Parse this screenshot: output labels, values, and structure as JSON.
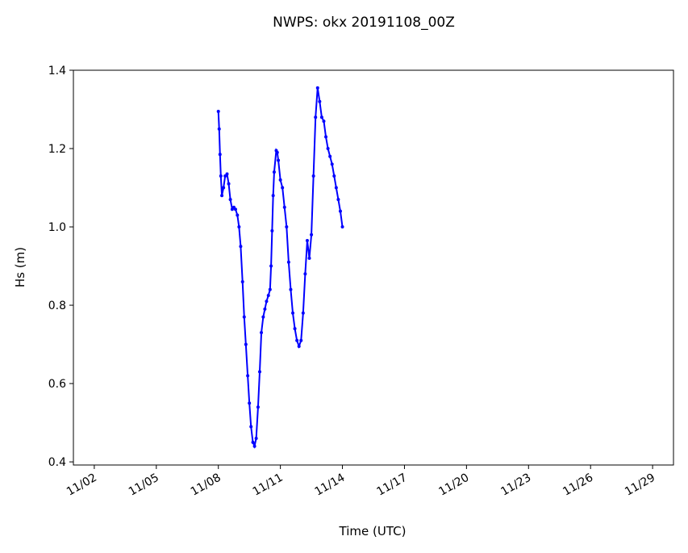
{
  "chart_data": {
    "type": "line",
    "title": "NWPS: okx 20191108_00Z",
    "xlabel": "Time (UTC)",
    "ylabel": "Hs (m)",
    "color": "#0000ff",
    "x": [
      8.0,
      8.04,
      8.08,
      8.12,
      8.17,
      8.25,
      8.33,
      8.42,
      8.5,
      8.58,
      8.67,
      8.75,
      8.83,
      8.92,
      9.0,
      9.08,
      9.17,
      9.25,
      9.33,
      9.42,
      9.5,
      9.58,
      9.67,
      9.75,
      9.83,
      9.92,
      10.0,
      10.08,
      10.17,
      10.25,
      10.33,
      10.42,
      10.5,
      10.55,
      10.6,
      10.65,
      10.7,
      10.8,
      10.85,
      10.9,
      11.0,
      11.1,
      11.2,
      11.3,
      11.4,
      11.5,
      11.6,
      11.7,
      11.8,
      11.9,
      12.0,
      12.1,
      12.2,
      12.3,
      12.4,
      12.5,
      12.6,
      12.7,
      12.8,
      12.9,
      13.0,
      13.1,
      13.2,
      13.3,
      13.4,
      13.5,
      13.6,
      13.7,
      13.8,
      13.9,
      14.0
    ],
    "values": [
      1.295,
      1.25,
      1.185,
      1.13,
      1.08,
      1.1,
      1.13,
      1.135,
      1.11,
      1.07,
      1.045,
      1.05,
      1.045,
      1.03,
      1.0,
      0.95,
      0.86,
      0.77,
      0.7,
      0.62,
      0.55,
      0.49,
      0.45,
      0.44,
      0.46,
      0.54,
      0.63,
      0.73,
      0.77,
      0.79,
      0.81,
      0.825,
      0.84,
      0.9,
      0.99,
      1.08,
      1.14,
      1.195,
      1.19,
      1.17,
      1.12,
      1.1,
      1.05,
      1.0,
      0.91,
      0.84,
      0.78,
      0.74,
      0.71,
      0.695,
      0.71,
      0.78,
      0.88,
      0.965,
      0.92,
      0.98,
      1.13,
      1.28,
      1.355,
      1.32,
      1.28,
      1.27,
      1.23,
      1.2,
      1.18,
      1.16,
      1.13,
      1.1,
      1.07,
      1.04,
      1.0
    ],
    "xlim": [
      0.99,
      30.01
    ],
    "ylim": [
      0.392,
      1.4
    ],
    "xticks": [
      {
        "value": 2,
        "label": "11/02"
      },
      {
        "value": 5,
        "label": "11/05"
      },
      {
        "value": 8,
        "label": "11/08"
      },
      {
        "value": 11,
        "label": "11/11"
      },
      {
        "value": 14,
        "label": "11/14"
      },
      {
        "value": 17,
        "label": "11/17"
      },
      {
        "value": 20,
        "label": "11/20"
      },
      {
        "value": 23,
        "label": "11/23"
      },
      {
        "value": 26,
        "label": "11/26"
      },
      {
        "value": 29,
        "label": "11/29"
      }
    ],
    "yticks": [
      0.4,
      0.6,
      0.8,
      {
        "value": 1.0,
        "label": "1.0"
      },
      1.2,
      1.4
    ]
  }
}
